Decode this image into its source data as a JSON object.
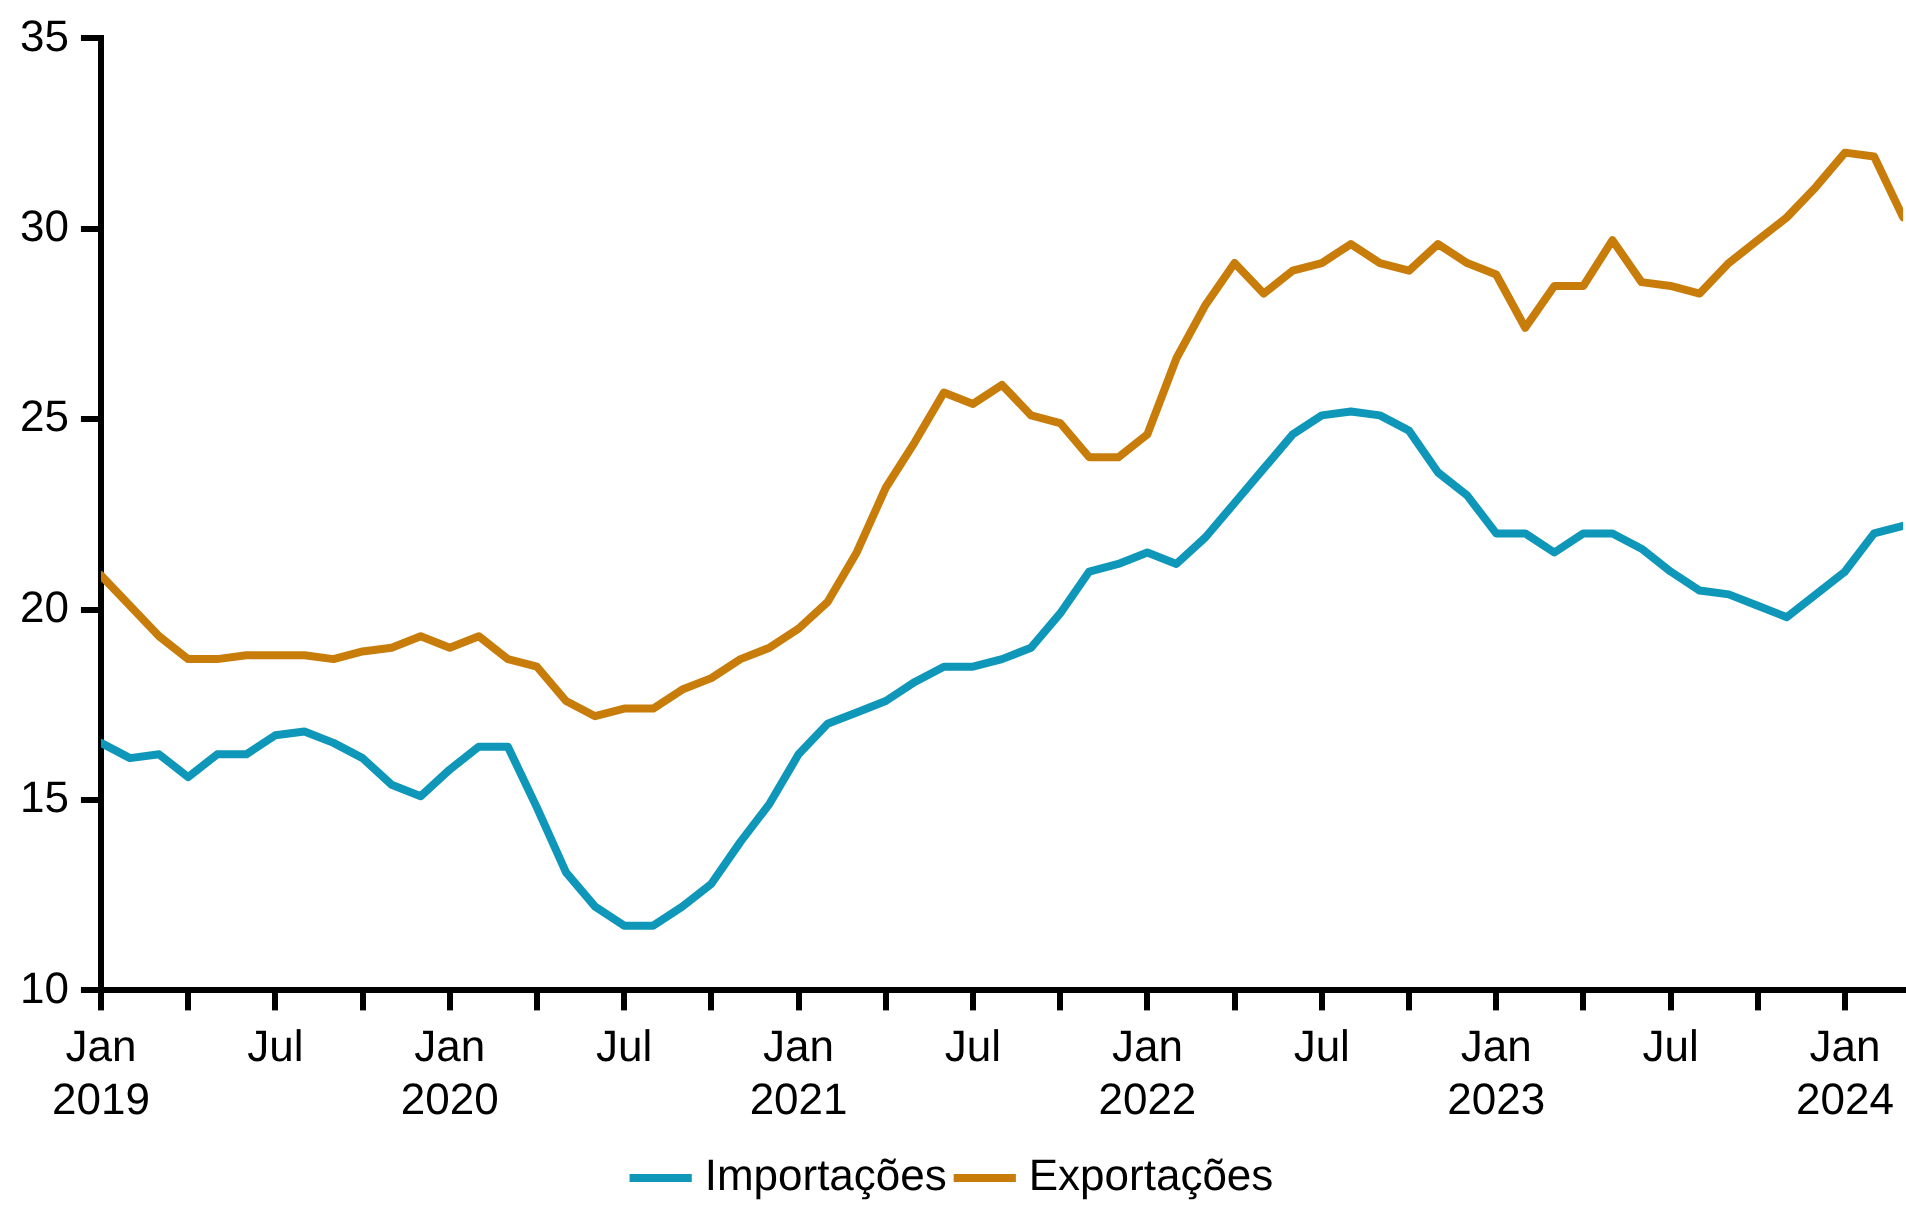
{
  "chart_data": {
    "type": "line",
    "x": [
      "2019-01",
      "2019-02",
      "2019-03",
      "2019-04",
      "2019-05",
      "2019-06",
      "2019-07",
      "2019-08",
      "2019-09",
      "2019-10",
      "2019-11",
      "2019-12",
      "2020-01",
      "2020-02",
      "2020-03",
      "2020-04",
      "2020-05",
      "2020-06",
      "2020-07",
      "2020-08",
      "2020-09",
      "2020-10",
      "2020-11",
      "2020-12",
      "2021-01",
      "2021-02",
      "2021-03",
      "2021-04",
      "2021-05",
      "2021-06",
      "2021-07",
      "2021-08",
      "2021-09",
      "2021-10",
      "2021-11",
      "2021-12",
      "2022-01",
      "2022-02",
      "2022-03",
      "2022-04",
      "2022-05",
      "2022-06",
      "2022-07",
      "2022-08",
      "2022-09",
      "2022-10",
      "2022-11",
      "2022-12",
      "2023-01",
      "2023-02",
      "2023-03",
      "2023-04",
      "2023-05",
      "2023-06",
      "2023-07",
      "2023-08",
      "2023-09",
      "2023-10",
      "2023-11",
      "2023-12",
      "2024-01",
      "2024-02",
      "2024-03"
    ],
    "series": [
      {
        "name": "Importações",
        "color": "#0e97b8",
        "values": [
          16.5,
          16.1,
          16.2,
          15.6,
          16.2,
          16.2,
          16.7,
          16.8,
          16.5,
          16.1,
          15.4,
          15.1,
          15.8,
          16.4,
          16.4,
          14.8,
          13.1,
          12.2,
          11.7,
          11.7,
          12.2,
          12.8,
          13.9,
          14.9,
          16.2,
          17.0,
          17.3,
          17.6,
          18.1,
          18.5,
          18.5,
          18.7,
          19.0,
          19.9,
          21.0,
          21.2,
          21.5,
          21.2,
          21.9,
          22.8,
          23.7,
          24.6,
          25.1,
          25.2,
          25.1,
          24.7,
          23.6,
          23.0,
          22.0,
          22.0,
          21.5,
          22.0,
          22.0,
          21.6,
          21.0,
          20.5,
          20.4,
          20.1,
          19.8,
          20.4,
          21.0,
          22.0,
          22.2
        ]
      },
      {
        "name": "Exportações",
        "color": "#c87d0a",
        "values": [
          20.9,
          20.1,
          19.3,
          18.7,
          18.7,
          18.8,
          18.8,
          18.8,
          18.7,
          18.9,
          19.0,
          19.3,
          19.0,
          19.3,
          18.7,
          18.5,
          17.6,
          17.2,
          17.4,
          17.4,
          17.9,
          18.2,
          18.7,
          19.0,
          19.5,
          20.2,
          21.5,
          23.2,
          24.4,
          25.7,
          25.4,
          25.9,
          25.1,
          24.9,
          24.0,
          24.0,
          24.6,
          26.6,
          28.0,
          29.1,
          28.3,
          28.9,
          29.1,
          29.6,
          29.1,
          28.9,
          29.6,
          29.1,
          28.8,
          27.4,
          28.5,
          28.5,
          29.7,
          28.6,
          28.5,
          28.3,
          29.1,
          29.7,
          30.3,
          31.1,
          32.0,
          31.9,
          30.3
        ]
      }
    ],
    "xlim": [
      "2019-01",
      "2024-03"
    ],
    "xticks": [
      {
        "value": "2019-01",
        "label": "Jan 2019"
      },
      {
        "value": "2019-04",
        "label": null
      },
      {
        "value": "2019-07",
        "label": "Jul"
      },
      {
        "value": "2019-10",
        "label": null
      },
      {
        "value": "2020-01",
        "label": "Jan 2020"
      },
      {
        "value": "2020-04",
        "label": null
      },
      {
        "value": "2020-07",
        "label": "Jul"
      },
      {
        "value": "2020-10",
        "label": null
      },
      {
        "value": "2021-01",
        "label": "Jan 2021"
      },
      {
        "value": "2021-04",
        "label": null
      },
      {
        "value": "2021-07",
        "label": "Jul"
      },
      {
        "value": "2021-10",
        "label": null
      },
      {
        "value": "2022-01",
        "label": "Jan 2022"
      },
      {
        "value": "2022-04",
        "label": null
      },
      {
        "value": "2022-07",
        "label": "Jul"
      },
      {
        "value": "2022-10",
        "label": null
      },
      {
        "value": "2023-01",
        "label": "Jan 2023"
      },
      {
        "value": "2023-04",
        "label": null
      },
      {
        "value": "2023-07",
        "label": "Jul"
      },
      {
        "value": "2023-10",
        "label": null
      },
      {
        "value": "2024-01",
        "label": "Jan 2024"
      }
    ],
    "ylim": [
      10,
      35
    ],
    "yticks": [
      10,
      15,
      20,
      25,
      30,
      35
    ],
    "grid": false,
    "legend": "bottom",
    "marker": "none",
    "line_style": "solid"
  }
}
